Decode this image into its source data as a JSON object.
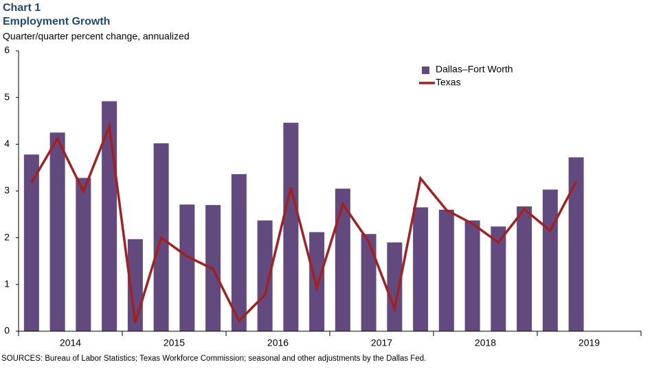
{
  "chart_data": {
    "type": "bar_line",
    "title": "Chart 1",
    "subtitle": "Employment Growth",
    "y_label": "Quarter/quarter  percent change, annualized",
    "source": "SOURCES: Bureau of Labor Statistics; Texas Workforce Commission; seasonal and other adjustments by the Dallas Fed.",
    "x_groups": [
      "2014",
      "2015",
      "2016",
      "2017",
      "2018",
      "2019"
    ],
    "categories": [
      null,
      null,
      null,
      null,
      null,
      null,
      null,
      null,
      null,
      null,
      null,
      null,
      null,
      null,
      null,
      null,
      null,
      null,
      null,
      null,
      null,
      null,
      null,
      null
    ],
    "series": [
      {
        "name": "Dallas–Fort Worth",
        "type": "bar",
        "color": "#634a7e",
        "values": [
          3.78,
          4.25,
          3.28,
          4.92,
          1.97,
          4.02,
          2.71,
          2.7,
          3.36,
          2.37,
          4.46,
          2.12,
          3.05,
          2.08,
          1.9,
          2.65,
          2.6,
          2.37,
          2.24,
          2.67,
          3.03,
          3.72,
          null,
          null
        ]
      },
      {
        "name": "Texas",
        "type": "line",
        "color": "#a4201f",
        "values": [
          3.18,
          4.12,
          2.99,
          4.38,
          0.18,
          2.0,
          1.6,
          1.33,
          0.22,
          0.78,
          3.07,
          0.93,
          2.72,
          1.92,
          0.48,
          3.27,
          2.59,
          2.3,
          1.9,
          2.61,
          2.15,
          3.2,
          null,
          null
        ]
      }
    ],
    "ylim": [
      0,
      6
    ],
    "yticks": [
      0,
      1,
      2,
      3,
      4,
      5,
      6
    ],
    "grid": false
  }
}
